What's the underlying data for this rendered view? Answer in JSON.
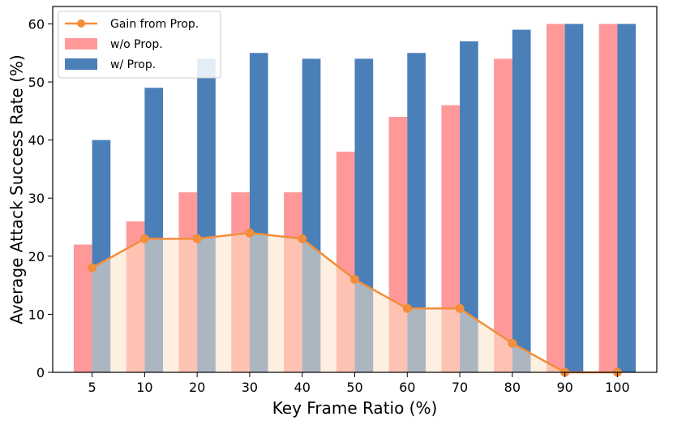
{
  "chart_data": {
    "type": "bar",
    "title": "",
    "xlabel": "Key Frame Ratio (%)",
    "ylabel": "Average Attack Success Rate (%)",
    "categories": [
      "5",
      "10",
      "20",
      "30",
      "40",
      "50",
      "60",
      "70",
      "80",
      "90",
      "100"
    ],
    "ylim": [
      0,
      63
    ],
    "yticks": [
      0,
      10,
      20,
      30,
      40,
      50,
      60
    ],
    "grid": false,
    "legend_position": "top-left",
    "series": [
      {
        "name": "w/o Prop.",
        "kind": "bar",
        "color": "#ff9999",
        "values": [
          22,
          26,
          31,
          31,
          31,
          38,
          44,
          46,
          54,
          60,
          60
        ]
      },
      {
        "name": "w/ Prop.",
        "kind": "bar",
        "color": "#4a7fb8",
        "values": [
          40,
          49,
          54,
          55,
          54,
          54,
          55,
          57,
          59,
          60,
          60
        ]
      },
      {
        "name": "Gain from Prop.",
        "kind": "line",
        "color": "#f28e3c",
        "fill_color": "#fde3c8",
        "values": [
          18,
          23,
          23,
          24,
          23,
          16,
          11,
          11,
          5,
          0,
          0
        ]
      }
    ]
  }
}
